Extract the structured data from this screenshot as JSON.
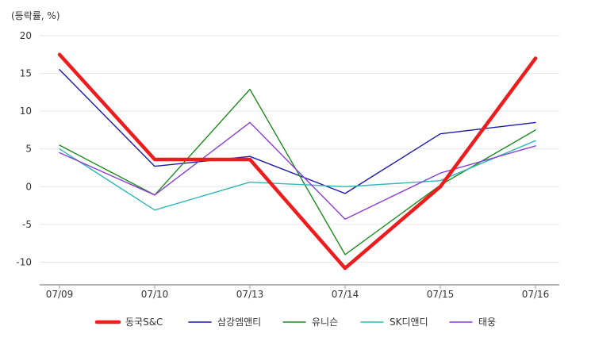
{
  "chart_data": {
    "type": "line",
    "unit_label": "(등락률, %)",
    "categories": [
      "07/09",
      "07/10",
      "07/13",
      "07/14",
      "07/15",
      "07/16"
    ],
    "ylim": [
      -13,
      20
    ],
    "yticks": [
      20,
      15,
      10,
      5,
      0,
      -5,
      -10
    ],
    "grid": true,
    "legend_position": "bottom",
    "series": [
      {
        "name": "동국S&C",
        "color": "#ee1c1c",
        "emphasis": true,
        "values": [
          17.5,
          3.6,
          3.6,
          -10.8,
          0.0,
          17.0
        ]
      },
      {
        "name": "삼강엠앤티",
        "color": "#1a1aa6",
        "emphasis": false,
        "values": [
          15.5,
          2.7,
          4.0,
          -0.9,
          7.0,
          8.5
        ]
      },
      {
        "name": "유니슨",
        "color": "#1e8a1e",
        "emphasis": false,
        "values": [
          5.5,
          -1.1,
          12.9,
          -9.0,
          0.2,
          7.5
        ]
      },
      {
        "name": "SK디앤디",
        "color": "#2eb8b8",
        "emphasis": false,
        "values": [
          5.0,
          -3.1,
          0.6,
          0.0,
          0.8,
          6.1
        ]
      },
      {
        "name": "태웅",
        "color": "#8a3fd0",
        "emphasis": false,
        "values": [
          4.5,
          -1.1,
          8.5,
          -4.3,
          1.8,
          5.4
        ]
      }
    ]
  }
}
